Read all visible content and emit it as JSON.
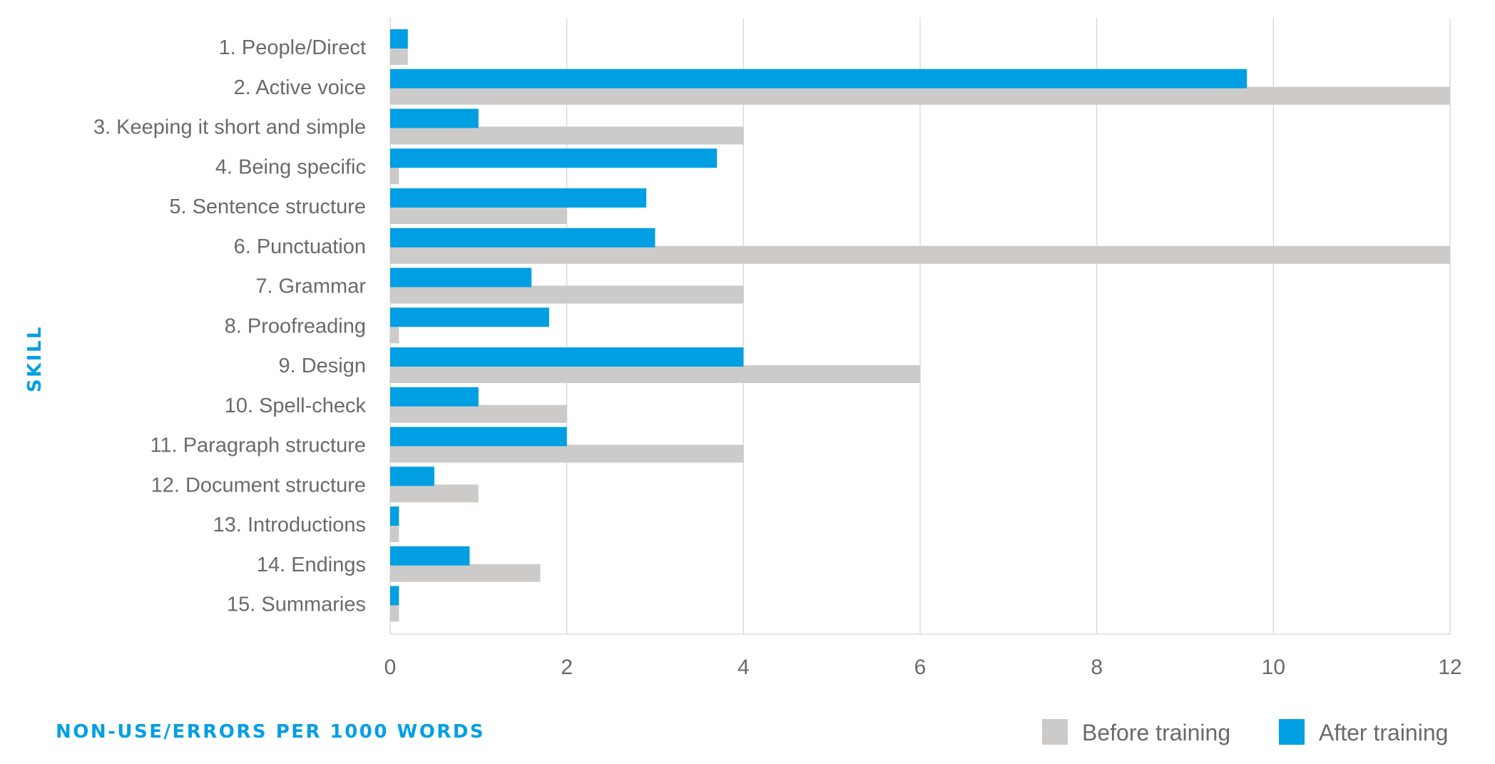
{
  "chart_data": {
    "type": "bar",
    "orientation": "horizontal",
    "categories": [
      "1.  People/Direct",
      "2.  Active voice",
      "3.  Keeping it short and simple",
      "4.  Being specific",
      "5.  Sentence structure",
      "6.  Punctuation",
      "7.  Grammar",
      "8.  Proofreading",
      "9.  Design",
      "10.  Spell-check",
      "11.  Paragraph structure",
      "12.  Document structure",
      "13.  Introductions",
      "14.  Endings",
      "15.  Summaries"
    ],
    "series": [
      {
        "name": "Before training",
        "color": "#cccbca",
        "values": [
          0.2,
          12,
          4,
          0.1,
          2,
          12,
          4,
          0.1,
          6,
          2,
          4,
          1,
          0.1,
          1.7,
          0.1
        ]
      },
      {
        "name": "After training",
        "color": "#009fe3",
        "values": [
          0.2,
          9.7,
          1,
          3.7,
          2.9,
          3,
          1.6,
          1.8,
          4,
          1,
          2,
          0.5,
          0.1,
          0.9,
          0.1
        ]
      }
    ],
    "xlim": [
      0,
      12
    ],
    "xticks": [
      "0",
      "2",
      "4",
      "6",
      "8",
      "10",
      "12"
    ],
    "xlabel": "NON-USE/ERRORS PER 1000 WORDS",
    "ylabel": "SKILL",
    "grid": "vertical",
    "legend": "bottom-right",
    "accent_color": "#009fe3"
  }
}
